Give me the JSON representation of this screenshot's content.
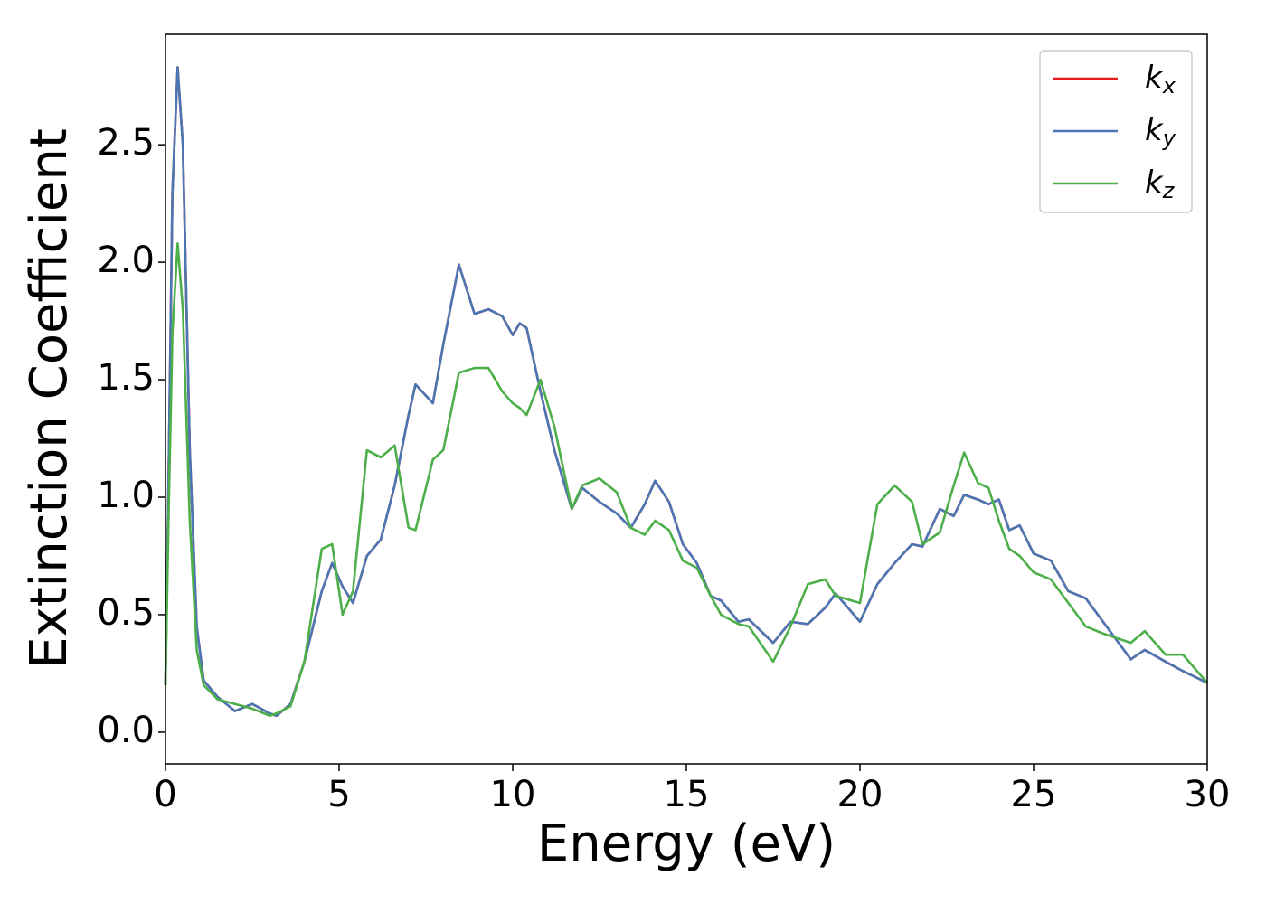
{
  "chart_data": {
    "type": "line",
    "xlabel": "Energy (eV)",
    "ylabel": "Extinction Coefficient",
    "x": [
      0,
      0.1,
      0.2,
      0.35,
      0.5,
      0.7,
      0.9,
      1.1,
      1.5,
      2,
      2.5,
      3,
      3.2,
      3.6,
      4,
      4.5,
      4.8,
      5.1,
      5.4,
      5.8,
      6.2,
      6.6,
      7,
      7.2,
      7.7,
      8,
      8.45,
      8.9,
      9.3,
      9.7,
      10,
      10.2,
      10.4,
      10.8,
      11.2,
      11.7,
      12,
      12.5,
      13,
      13.4,
      13.8,
      14.1,
      14.5,
      14.9,
      15.3,
      15.7,
      16,
      16.5,
      16.8,
      17.5,
      18,
      18.5,
      19,
      19.3,
      20,
      20.5,
      21,
      21.5,
      21.8,
      22.3,
      22.7,
      23,
      23.4,
      23.7,
      24,
      24.3,
      24.6,
      25,
      25.5,
      26,
      26.5,
      27,
      27.8,
      28.2,
      28.8,
      29.3,
      30
    ],
    "series": [
      {
        "name": "kx",
        "color": "#e41a1c",
        "values": [
          0.2,
          1.2,
          2.3,
          2.83,
          2.5,
          1.2,
          0.45,
          0.22,
          0.15,
          0.09,
          0.12,
          0.08,
          0.07,
          0.12,
          0.3,
          0.6,
          0.72,
          0.62,
          0.55,
          0.75,
          0.82,
          1.05,
          1.35,
          1.48,
          1.4,
          1.65,
          1.99,
          1.78,
          1.8,
          1.77,
          1.69,
          1.74,
          1.72,
          1.45,
          1.2,
          0.95,
          1.04,
          0.98,
          0.93,
          0.87,
          0.97,
          1.07,
          0.98,
          0.8,
          0.72,
          0.58,
          0.56,
          0.47,
          0.48,
          0.38,
          0.47,
          0.46,
          0.53,
          0.59,
          0.47,
          0.63,
          0.72,
          0.8,
          0.79,
          0.95,
          0.92,
          1.01,
          0.99,
          0.97,
          0.99,
          0.86,
          0.88,
          0.76,
          0.73,
          0.6,
          0.57,
          0.47,
          0.31,
          0.35,
          0.3,
          0.26,
          0.21
        ]
      },
      {
        "name": "ky",
        "color": "#4a77b4",
        "values": [
          0.2,
          1.2,
          2.3,
          2.83,
          2.5,
          1.2,
          0.45,
          0.22,
          0.15,
          0.09,
          0.12,
          0.08,
          0.07,
          0.12,
          0.3,
          0.6,
          0.72,
          0.62,
          0.55,
          0.75,
          0.82,
          1.05,
          1.35,
          1.48,
          1.4,
          1.65,
          1.99,
          1.78,
          1.8,
          1.77,
          1.69,
          1.74,
          1.72,
          1.45,
          1.2,
          0.95,
          1.04,
          0.98,
          0.93,
          0.87,
          0.97,
          1.07,
          0.98,
          0.8,
          0.72,
          0.58,
          0.56,
          0.47,
          0.48,
          0.38,
          0.47,
          0.46,
          0.53,
          0.59,
          0.47,
          0.63,
          0.72,
          0.8,
          0.79,
          0.95,
          0.92,
          1.01,
          0.99,
          0.97,
          0.99,
          0.86,
          0.88,
          0.76,
          0.73,
          0.6,
          0.57,
          0.47,
          0.31,
          0.35,
          0.3,
          0.26,
          0.21
        ]
      },
      {
        "name": "kz",
        "color": "#4daf4a",
        "values": [
          0.2,
          1.0,
          1.7,
          2.08,
          1.8,
          0.9,
          0.35,
          0.2,
          0.14,
          0.12,
          0.1,
          0.07,
          0.08,
          0.11,
          0.3,
          0.78,
          0.8,
          0.5,
          0.6,
          1.2,
          1.17,
          1.22,
          0.87,
          0.86,
          1.16,
          1.2,
          1.53,
          1.55,
          1.55,
          1.45,
          1.4,
          1.38,
          1.35,
          1.5,
          1.3,
          0.95,
          1.05,
          1.08,
          1.02,
          0.87,
          0.84,
          0.9,
          0.86,
          0.73,
          0.7,
          0.58,
          0.5,
          0.46,
          0.45,
          0.3,
          0.45,
          0.63,
          0.65,
          0.58,
          0.55,
          0.97,
          1.05,
          0.98,
          0.8,
          0.85,
          1.05,
          1.19,
          1.06,
          1.04,
          0.9,
          0.78,
          0.75,
          0.68,
          0.65,
          0.55,
          0.45,
          0.42,
          0.38,
          0.43,
          0.33,
          0.33,
          0.21
        ]
      }
    ],
    "xlim": [
      0,
      30
    ],
    "xticks": [
      0,
      5,
      10,
      15,
      20,
      25,
      30
    ],
    "ylim": [
      -0.135,
      2.97
    ],
    "yticks": [
      {
        "value": 0,
        "label": "0.0"
      },
      0.5,
      {
        "value": 1,
        "label": "1.0"
      },
      1.5,
      {
        "value": 2,
        "label": "2.0"
      },
      2.5
    ],
    "legend": "upper right"
  }
}
